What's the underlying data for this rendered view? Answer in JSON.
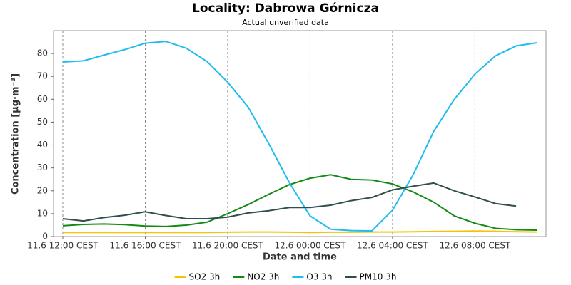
{
  "chart_data": {
    "type": "line",
    "title": "Locality: Dabrowa Górnicza",
    "subtitle": "Actual unverified data",
    "x_label": "Date and time",
    "y_label": "Concentration [µg·m⁻³]",
    "categories": [
      "11.6 12:00 CEST",
      null,
      null,
      null,
      "11.6 16:00 CEST",
      null,
      null,
      null,
      "11.6 20:00 CEST",
      null,
      null,
      null,
      "12.6 00:00 CEST",
      null,
      null,
      null,
      "12.6 04:00 CEST",
      null,
      null,
      null,
      "12.6 08:00 CEST",
      null,
      null,
      null
    ],
    "ylim": [
      0,
      90
    ],
    "yticks": [
      0,
      10,
      20,
      30,
      40,
      50,
      60,
      70,
      80
    ],
    "grid": true,
    "legend": "bottom",
    "series": [
      {
        "name": "SO2 3h",
        "color": "#f5c400",
        "values": [
          1.8,
          1.8,
          1.8,
          1.8,
          1.8,
          1.8,
          1.8,
          1.8,
          1.9,
          2.0,
          2.0,
          1.9,
          1.8,
          1.9,
          1.9,
          2.0,
          2.0,
          2.1,
          2.2,
          2.3,
          2.4,
          2.3,
          2.1,
          2.0
        ]
      },
      {
        "name": "NO2 3h",
        "color": "#138a13",
        "values": [
          4.7,
          5.3,
          5.5,
          5.2,
          4.6,
          4.4,
          5.0,
          6.3,
          10.0,
          14.0,
          18.5,
          22.7,
          25.5,
          27.0,
          25.0,
          24.7,
          23.0,
          19.5,
          15.0,
          9.0,
          5.8,
          3.6,
          3.0,
          2.8
        ]
      },
      {
        "name": "O3 3h",
        "color": "#1ebcf0",
        "values": [
          76.3,
          76.8,
          79.3,
          81.7,
          84.5,
          85.3,
          82.3,
          76.5,
          67.5,
          56.5,
          40.5,
          23.5,
          9.0,
          3.2,
          2.6,
          2.5,
          11.5,
          27.0,
          46.0,
          60.0,
          71.0,
          79.0,
          83.3,
          84.7
        ]
      },
      {
        "name": "PM10 3h",
        "color": "#2f4f4f",
        "values": [
          7.8,
          6.8,
          8.3,
          9.3,
          10.8,
          9.2,
          7.8,
          7.8,
          8.5,
          10.3,
          11.3,
          12.7,
          12.7,
          13.7,
          15.7,
          17.1,
          20.4,
          22.0,
          23.4,
          20.0,
          17.3,
          14.4,
          13.3,
          null
        ]
      }
    ]
  }
}
